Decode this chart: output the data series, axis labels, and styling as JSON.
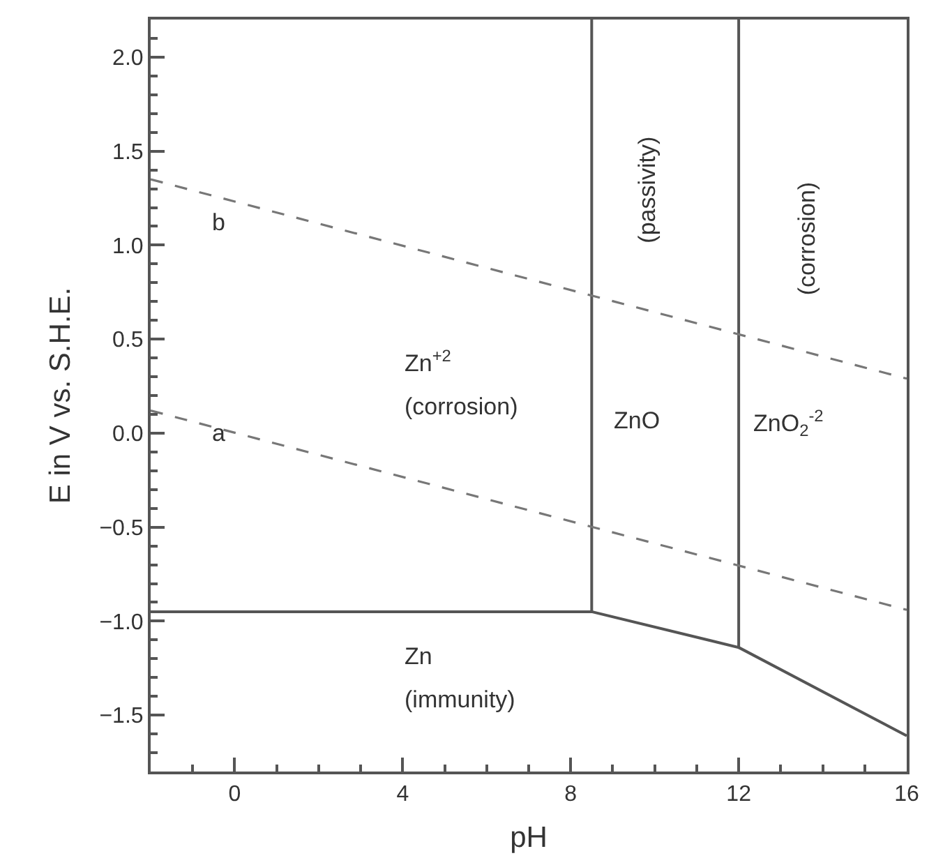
{
  "chart_data": {
    "type": "line",
    "xlabel": "pH",
    "ylabel": "E in V vs. S.H.E.",
    "xlim": [
      -2,
      16
    ],
    "ylim": [
      -1.8,
      2.2
    ],
    "xticks": [
      0,
      4,
      8,
      12,
      16,
      {
        "value": -2,
        "label": null
      },
      {
        "value": -1,
        "label": null
      },
      {
        "value": 1,
        "label": null
      },
      {
        "value": 2,
        "label": null
      },
      {
        "value": 3,
        "label": null
      },
      {
        "value": 5,
        "label": null
      },
      {
        "value": 6,
        "label": null
      },
      {
        "value": 7,
        "label": null
      },
      {
        "value": 9,
        "label": null
      },
      {
        "value": 10,
        "label": null
      },
      {
        "value": 11,
        "label": null
      },
      {
        "value": 13,
        "label": null
      },
      {
        "value": 14,
        "label": null
      },
      {
        "value": 15,
        "label": null
      }
    ],
    "yticks": [
      {
        "value": 2,
        "label": "2.0"
      },
      {
        "value": 1.5,
        "label": "1.5"
      },
      {
        "value": 1,
        "label": "1.0"
      },
      {
        "value": 0.5,
        "label": "0.5"
      },
      {
        "value": 0,
        "label": "0.0"
      },
      {
        "value": -0.5,
        "label": "−0.5"
      },
      {
        "value": -1,
        "label": "−1.0"
      },
      {
        "value": -1.5,
        "label": "−1.5"
      },
      {
        "value": 2.1,
        "label": null
      },
      {
        "value": 1.9,
        "label": null
      },
      {
        "value": 1.8,
        "label": null
      },
      {
        "value": 1.7,
        "label": null
      },
      {
        "value": 1.6,
        "label": null
      },
      {
        "value": 1.4,
        "label": null
      },
      {
        "value": 1.3,
        "label": null
      },
      {
        "value": 1.2,
        "label": null
      },
      {
        "value": 1.1,
        "label": null
      },
      {
        "value": 0.9,
        "label": null
      },
      {
        "value": 0.8,
        "label": null
      },
      {
        "value": 0.7,
        "label": null
      },
      {
        "value": 0.6,
        "label": null
      },
      {
        "value": 0.4,
        "label": null
      },
      {
        "value": 0.3,
        "label": null
      },
      {
        "value": 0.2,
        "label": null
      },
      {
        "value": 0.1,
        "label": null
      },
      {
        "value": -0.1,
        "label": null
      },
      {
        "value": -0.2,
        "label": null
      },
      {
        "value": -0.3,
        "label": null
      },
      {
        "value": -0.4,
        "label": null
      },
      {
        "value": -0.6,
        "label": null
      },
      {
        "value": -0.7,
        "label": null
      },
      {
        "value": -0.8,
        "label": null
      },
      {
        "value": -0.9,
        "label": null
      },
      {
        "value": -1.1,
        "label": null
      },
      {
        "value": -1.2,
        "label": null
      },
      {
        "value": -1.3,
        "label": null
      },
      {
        "value": -1.4,
        "label": null
      },
      {
        "value": -1.6,
        "label": null
      },
      {
        "value": -1.7,
        "label": null
      }
    ],
    "marker": "none",
    "series": [
      {
        "color": "#555555",
        "x": [
          -2,
          8.5,
          8.5
        ],
        "values": [
          -0.95,
          -0.95,
          2.2
        ],
        "line_style": "solid"
      },
      {
        "color": "#555555",
        "x": [
          8.5,
          12,
          12
        ],
        "values": [
          -0.95,
          -1.14,
          2.2
        ],
        "line_style": "solid"
      },
      {
        "color": "#555555",
        "x": [
          12,
          16
        ],
        "values": [
          -1.14,
          -1.61
        ],
        "line_style": "solid"
      },
      {
        "color": "#777777",
        "x": [
          -2,
          16
        ],
        "values": [
          0.12,
          -0.94
        ],
        "line_style": "dashed"
      },
      {
        "color": "#777777",
        "x": [
          -2,
          16
        ],
        "values": [
          1.35,
          0.29
        ],
        "line_style": "dashed"
      }
    ],
    "annotations": [
      "b",
      "a",
      "Zn$^{+2}$",
      "(corrosion)",
      "ZnO",
      "ZnO$_{2}$$^{-2}$",
      "(passivity)",
      "(corrosion)",
      "Zn",
      "(immunity)"
    ]
  }
}
